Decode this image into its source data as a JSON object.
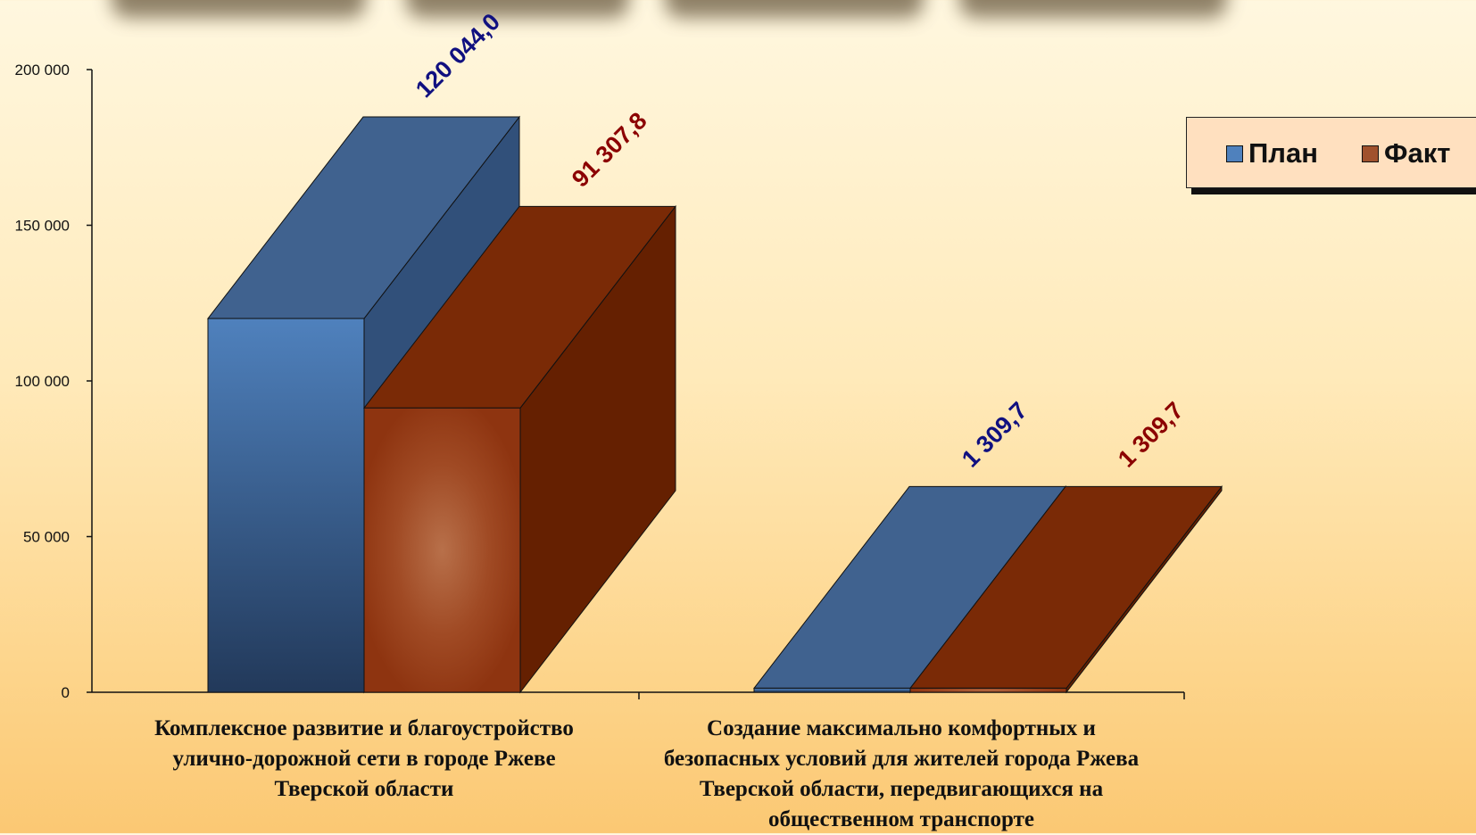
{
  "chart_data": {
    "type": "bar",
    "categories": [
      "Комплексное развитие и благоустройство улично-дорожной сети в городе Ржеве Тверской области",
      "Создание максимально комфортных и безопасных условий для жителей города Ржева Тверской области, передвигающихся на общественном транспорте"
    ],
    "category_lines": [
      [
        "Комплексное развитие и благоустройство",
        "улично-дорожной сети в городе Ржеве",
        "Тверской области"
      ],
      [
        "Создание максимально комфортных и",
        "безопасных условий для жителей города Ржева",
        "Тверской области, передвигающихся на",
        "общественном транспорте"
      ]
    ],
    "series": [
      {
        "name": "План",
        "values": [
          120044.0,
          1309.7
        ],
        "labels": [
          "120 044,0",
          "1 309,7"
        ]
      },
      {
        "name": "Факт",
        "values": [
          91307.8,
          1309.7
        ],
        "labels": [
          "91 307,8",
          "1 309,7"
        ]
      }
    ],
    "yticks": [
      0,
      50000,
      100000,
      150000,
      200000
    ],
    "ytick_labels": [
      "0",
      "50 000",
      "100 000",
      "150 000",
      "200 000"
    ],
    "ylim": [
      0,
      200000
    ],
    "legend_position": "top-right",
    "colors": {
      "plan_front_top": "#4f81bd",
      "plan_front_bottom": "#243f5f",
      "plan_top": "#40628f",
      "plan_side": "#31507a",
      "fact_front": "#9a3a16",
      "fact_front_glow": "#b8704a",
      "fact_top": "#7a2a06",
      "fact_side": "#652001",
      "plan_label": "#101080",
      "fact_label": "#8b0000"
    }
  }
}
